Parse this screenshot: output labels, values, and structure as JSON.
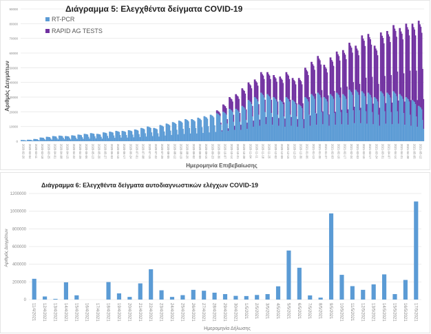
{
  "chart_data": [
    {
      "type": "bar",
      "stacked": true,
      "title": "Διάγραμμα 5: Ελεγχθέντα δείγματα COVID-19",
      "xlabel": "Ημερομηνία Επιβεβαίωσης",
      "ylabel": "Αριθμός Δειγμάτων",
      "ylim": [
        0,
        90000
      ],
      "yticks": [
        "0",
        "10000",
        "20000",
        "30000",
        "40000",
        "50000",
        "60000",
        "70000",
        "80000",
        "90000"
      ],
      "legend_position": "top-left",
      "grid": true,
      "note": "Daily bars; weekly peak values listed per week starting at each tick date, scaled by weekday_factor for each day",
      "weekday_factor": [
        1,
        1,
        0.97,
        0.95,
        0.9,
        0.6,
        0.35
      ],
      "x_ticks": [
        "2020-02-26",
        "2020-03-04",
        "2020-03-11",
        "2020-03-18",
        "2020-03-25",
        "2020-04-01",
        "2020-04-08",
        "2020-04-15",
        "2020-04-22",
        "2020-04-29",
        "2020-05-06",
        "2020-05-13",
        "2020-05-20",
        "2020-05-27",
        "2020-06-03",
        "2020-06-10",
        "2020-06-17",
        "2020-06-24",
        "2020-07-01",
        "2020-07-08",
        "2020-07-15",
        "2020-07-22",
        "2020-07-29",
        "2020-08-05",
        "2020-08-12",
        "2020-08-19",
        "2020-08-26",
        "2020-09-02",
        "2020-09-09",
        "2020-09-16",
        "2020-09-23",
        "2020-09-30",
        "2020-10-07",
        "2020-10-14",
        "2020-10-21",
        "2020-10-28",
        "2020-11-04",
        "2020-11-11",
        "2020-11-18",
        "2020-11-25",
        "2020-12-02",
        "2020-12-09",
        "2020-12-16",
        "2020-12-23",
        "2020-12-30",
        "2021-01-06",
        "2021-01-13",
        "2021-01-20",
        "2021-01-27",
        "2021-02-03",
        "2021-02-10",
        "2021-02-17",
        "2021-02-24",
        "2021-03-03",
        "2021-03-10",
        "2021-03-17",
        "2021-03-24",
        "2021-03-31",
        "2021-04-07",
        "2021-04-14",
        "2021-04-21",
        "2021-04-28",
        "2021-05-05",
        "2021-05-12"
      ],
      "series": [
        {
          "name": "RT-PCR",
          "color": "#5b9bd5",
          "weekly_peak": [
            800,
            1000,
            1500,
            2500,
            3000,
            3500,
            3800,
            3500,
            4000,
            4500,
            5000,
            5500,
            5000,
            6000,
            6500,
            7000,
            7000,
            7500,
            8000,
            9000,
            10000,
            9000,
            11000,
            12000,
            13000,
            14000,
            15000,
            15000,
            16000,
            17000,
            18000,
            19000,
            20000,
            22000,
            22000,
            24000,
            28000,
            30000,
            33000,
            32000,
            30000,
            28000,
            30000,
            28000,
            25000,
            30000,
            32000,
            33000,
            30000,
            32000,
            33000,
            32000,
            35000,
            35000,
            34000,
            33000,
            30000,
            34000,
            33000,
            34000,
            32000,
            30000,
            28000,
            24000
          ]
        },
        {
          "name": "RAPID AG TESTS",
          "color": "#7030a0",
          "weekly_peak": [
            0,
            0,
            0,
            0,
            0,
            0,
            0,
            0,
            0,
            0,
            0,
            0,
            0,
            0,
            0,
            0,
            0,
            0,
            0,
            0,
            0,
            0,
            0,
            0,
            0,
            0,
            0,
            0,
            0,
            0,
            0,
            2000,
            5000,
            8000,
            10000,
            12000,
            12000,
            12000,
            14000,
            15000,
            15000,
            16000,
            17000,
            15000,
            18000,
            20000,
            22000,
            25000,
            22000,
            25000,
            28000,
            30000,
            32000,
            30000,
            38000,
            40000,
            35000,
            40000,
            42000,
            45000,
            45000,
            50000,
            52000,
            58000
          ]
        }
      ]
    },
    {
      "type": "bar",
      "title": "Διάγραμμα 6: Ελεγχθέντα δείγματα αυτοδιαγνωστικών ελέγχων COVID-19",
      "xlabel": "Ημερομηνία Δήλωσης",
      "ylabel": "Αριθμός Δειγμάτων",
      "ylim": [
        0,
        1200000
      ],
      "yticks": [
        "0",
        "200000",
        "400000",
        "600000",
        "800000",
        "1000000",
        "1200000"
      ],
      "grid": true,
      "color": "#5b9bd5",
      "categories": [
        "11/4/2021",
        "12/4/2021",
        "13/4/2021",
        "14/4/2021",
        "15/4/2021",
        "16/4/2021",
        "17/4/2021",
        "18/4/2021",
        "19/4/2021",
        "20/4/2021",
        "21/4/2021",
        "22/4/2021",
        "23/4/2021",
        "24/4/2021",
        "25/4/2021",
        "26/4/2021",
        "27/4/2021",
        "28/4/2021",
        "29/4/2021",
        "30/4/2021",
        "1/5/2021",
        "2/5/2021",
        "3/5/2021",
        "4/5/2021",
        "5/5/2021",
        "6/5/2021",
        "7/5/2021",
        "8/5/2021",
        "9/5/2021",
        "10/5/2021",
        "11/5/2021",
        "12/5/2021",
        "13/5/2021",
        "14/5/2021",
        "15/5/2021",
        "16/5/2021",
        "17/5/2021"
      ],
      "values": [
        235000,
        35000,
        8000,
        195000,
        48000,
        0,
        0,
        198000,
        70000,
        30000,
        183000,
        343000,
        105000,
        30000,
        50000,
        110000,
        100000,
        78000,
        62000,
        42000,
        40000,
        52000,
        62000,
        150000,
        555000,
        360000,
        47000,
        22000,
        975000,
        280000,
        152000,
        110000,
        172000,
        285000,
        62000,
        222000,
        1110000
      ]
    }
  ]
}
